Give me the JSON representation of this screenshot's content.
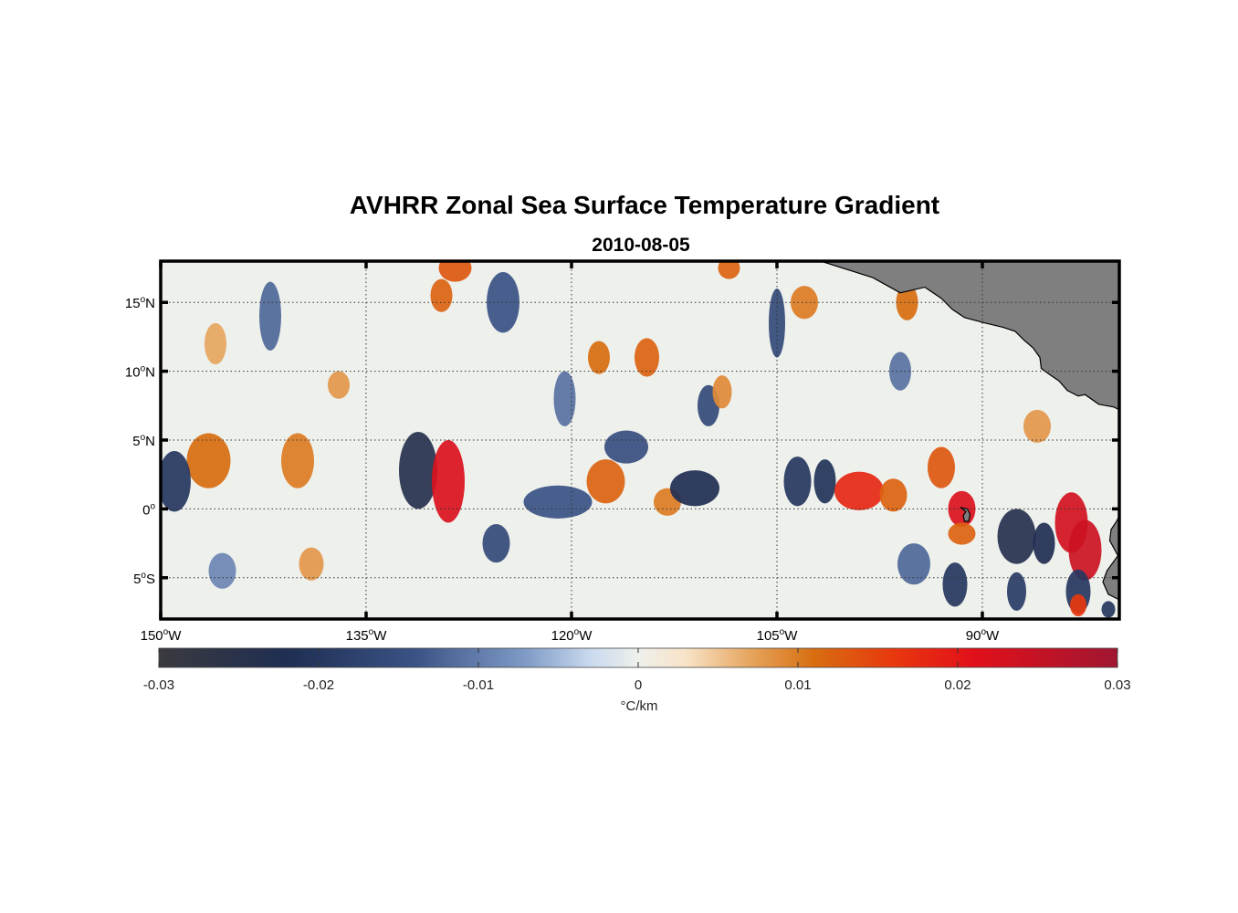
{
  "chart_data": {
    "type": "heatmap",
    "title": "AVHRR Zonal Sea Surface Temperature Gradient",
    "subtitle": "2010-08-05",
    "x_axis": {
      "range": [
        -150,
        -80
      ],
      "ticks": [
        {
          "value": -150,
          "deg": "150",
          "sup": "o",
          "hemi": "W"
        },
        {
          "value": -135,
          "deg": "135",
          "sup": "o",
          "hemi": "W"
        },
        {
          "value": -120,
          "deg": "120",
          "sup": "o",
          "hemi": "W"
        },
        {
          "value": -105,
          "deg": "105",
          "sup": "o",
          "hemi": "W"
        },
        {
          "value": -90,
          "deg": "90",
          "sup": "o",
          "hemi": "W"
        }
      ]
    },
    "y_axis": {
      "range": [
        -8,
        18
      ],
      "ticks": [
        {
          "value": 15,
          "deg": "15",
          "sup": "o",
          "hemi": "N"
        },
        {
          "value": 10,
          "deg": "10",
          "sup": "o",
          "hemi": "N"
        },
        {
          "value": 5,
          "deg": "5",
          "sup": "o",
          "hemi": "N"
        },
        {
          "value": 0,
          "deg": "0",
          "sup": "o",
          "hemi": ""
        },
        {
          "value": -5,
          "deg": "5",
          "sup": "o",
          "hemi": "S"
        }
      ]
    },
    "grid": true,
    "colorbar": {
      "range": [
        -0.03,
        0.03
      ],
      "ticks": [
        "-0.03",
        "-0.02",
        "-0.01",
        "0",
        "0.01",
        "0.02",
        "0.03"
      ],
      "tick_values": [
        -0.03,
        -0.02,
        -0.01,
        0,
        0.01,
        0.02,
        0.03
      ],
      "label": "°C/km",
      "orientation": "horizontal",
      "stops": [
        {
          "v": -0.03,
          "c": "#3a3a3f"
        },
        {
          "v": -0.022,
          "c": "#1f2e52"
        },
        {
          "v": -0.014,
          "c": "#3a5385"
        },
        {
          "v": -0.007,
          "c": "#7f9bc6"
        },
        {
          "v": -0.003,
          "c": "#c9d9ee"
        },
        {
          "v": 0.0,
          "c": "#eef0ec"
        },
        {
          "v": 0.003,
          "c": "#f8e3c7"
        },
        {
          "v": 0.007,
          "c": "#e6a55e"
        },
        {
          "v": 0.011,
          "c": "#d86e10"
        },
        {
          "v": 0.016,
          "c": "#e8380e"
        },
        {
          "v": 0.021,
          "c": "#e2101a"
        },
        {
          "v": 0.03,
          "c": "#a01632"
        }
      ]
    },
    "features": [
      {
        "lon": -146.5,
        "lat": 3.5,
        "value": 0.011,
        "slon": 1.6,
        "slat": 2.0
      },
      {
        "lon": -149.0,
        "lat": 2.0,
        "value": -0.02,
        "slon": 1.2,
        "slat": 2.2
      },
      {
        "lon": -145.5,
        "lat": -4.5,
        "value": -0.009,
        "slon": 1.0,
        "slat": 1.3
      },
      {
        "lon": -142.0,
        "lat": 14.0,
        "value": -0.012,
        "slon": 0.8,
        "slat": 2.5
      },
      {
        "lon": -140.0,
        "lat": 3.5,
        "value": 0.01,
        "slon": 1.2,
        "slat": 2.0
      },
      {
        "lon": -139.0,
        "lat": -4.0,
        "value": 0.008,
        "slon": 0.9,
        "slat": 1.2
      },
      {
        "lon": -146.0,
        "lat": 12.0,
        "value": 0.007,
        "slon": 0.8,
        "slat": 1.5
      },
      {
        "lon": -131.2,
        "lat": 2.8,
        "value": -0.024,
        "slon": 1.4,
        "slat": 2.8
      },
      {
        "lon": -129.0,
        "lat": 2.0,
        "value": 0.022,
        "slon": 1.2,
        "slat": 3.0
      },
      {
        "lon": -128.5,
        "lat": 17.5,
        "value": 0.013,
        "slon": 1.2,
        "slat": 1.0
      },
      {
        "lon": -129.5,
        "lat": 15.5,
        "value": 0.012,
        "slon": 0.8,
        "slat": 1.2
      },
      {
        "lon": -125.5,
        "lat": -2.5,
        "value": -0.016,
        "slon": 1.0,
        "slat": 1.4
      },
      {
        "lon": -125.0,
        "lat": 15.0,
        "value": -0.014,
        "slon": 1.2,
        "slat": 2.2
      },
      {
        "lon": -120.5,
        "lat": 8.0,
        "value": -0.011,
        "slon": 0.8,
        "slat": 2.0
      },
      {
        "lon": -118.0,
        "lat": 11.0,
        "value": 0.011,
        "slon": 0.8,
        "slat": 1.2
      },
      {
        "lon": -117.5,
        "lat": 2.0,
        "value": 0.012,
        "slon": 1.4,
        "slat": 1.6
      },
      {
        "lon": -121.0,
        "lat": 0.5,
        "value": -0.014,
        "slon": 2.5,
        "slat": 1.2
      },
      {
        "lon": -116.0,
        "lat": 4.5,
        "value": -0.015,
        "slon": 1.6,
        "slat": 1.2
      },
      {
        "lon": -114.5,
        "lat": 11.0,
        "value": 0.012,
        "slon": 0.9,
        "slat": 1.4
      },
      {
        "lon": -113.0,
        "lat": 0.5,
        "value": 0.01,
        "slon": 1.0,
        "slat": 1.0
      },
      {
        "lon": -111.0,
        "lat": 1.5,
        "value": -0.022,
        "slon": 1.8,
        "slat": 1.3
      },
      {
        "lon": -110.0,
        "lat": 7.5,
        "value": -0.016,
        "slon": 0.8,
        "slat": 1.5
      },
      {
        "lon": -109.0,
        "lat": 8.5,
        "value": 0.009,
        "slon": 0.7,
        "slat": 1.2
      },
      {
        "lon": -108.5,
        "lat": 17.5,
        "value": 0.012,
        "slon": 0.8,
        "slat": 0.8
      },
      {
        "lon": -105.0,
        "lat": 13.5,
        "value": -0.016,
        "slon": 0.6,
        "slat": 2.5
      },
      {
        "lon": -103.0,
        "lat": 15.0,
        "value": 0.01,
        "slon": 1.0,
        "slat": 1.2
      },
      {
        "lon": -103.5,
        "lat": 2.0,
        "value": -0.02,
        "slon": 1.0,
        "slat": 1.8
      },
      {
        "lon": -101.5,
        "lat": 2.0,
        "value": -0.021,
        "slon": 0.8,
        "slat": 1.6
      },
      {
        "lon": -99.0,
        "lat": 1.3,
        "value": 0.018,
        "slon": 1.8,
        "slat": 1.4
      },
      {
        "lon": -96.5,
        "lat": 1.0,
        "value": 0.012,
        "slon": 1.0,
        "slat": 1.2
      },
      {
        "lon": -95.5,
        "lat": 15.0,
        "value": 0.011,
        "slon": 0.8,
        "slat": 1.3
      },
      {
        "lon": -93.0,
        "lat": 3.0,
        "value": 0.013,
        "slon": 1.0,
        "slat": 1.5
      },
      {
        "lon": -91.5,
        "lat": 0.0,
        "value": 0.022,
        "slon": 1.0,
        "slat": 1.3
      },
      {
        "lon": -91.5,
        "lat": -1.8,
        "value": 0.012,
        "slon": 1.0,
        "slat": 0.8
      },
      {
        "lon": -95.0,
        "lat": -4.0,
        "value": -0.012,
        "slon": 1.2,
        "slat": 1.5
      },
      {
        "lon": -92.0,
        "lat": -5.5,
        "value": -0.02,
        "slon": 0.9,
        "slat": 1.6
      },
      {
        "lon": -87.5,
        "lat": -2.0,
        "value": -0.024,
        "slon": 1.4,
        "slat": 2.0
      },
      {
        "lon": -85.5,
        "lat": -2.5,
        "value": -0.022,
        "slon": 0.8,
        "slat": 1.5
      },
      {
        "lon": -87.5,
        "lat": -6.0,
        "value": -0.019,
        "slon": 0.7,
        "slat": 1.4
      },
      {
        "lon": -83.5,
        "lat": -1.0,
        "value": 0.023,
        "slon": 1.2,
        "slat": 2.2
      },
      {
        "lon": -82.5,
        "lat": -3.0,
        "value": 0.024,
        "slon": 1.2,
        "slat": 2.2
      },
      {
        "lon": -83.0,
        "lat": -6.0,
        "value": -0.02,
        "slon": 0.9,
        "slat": 1.6
      },
      {
        "lon": -83.0,
        "lat": -7.0,
        "value": 0.016,
        "slon": 0.6,
        "slat": 0.8
      },
      {
        "lon": -80.8,
        "lat": -7.3,
        "value": -0.02,
        "slon": 0.5,
        "slat": 0.6
      },
      {
        "lon": -96.0,
        "lat": 10.0,
        "value": -0.011,
        "slon": 0.8,
        "slat": 1.4
      },
      {
        "lon": -86.0,
        "lat": 6.0,
        "value": 0.008,
        "slon": 1.0,
        "slat": 1.2
      },
      {
        "lon": -137.0,
        "lat": 9.0,
        "value": 0.008,
        "slon": 0.8,
        "slat": 1.0
      }
    ],
    "land": [
      {
        "name": "central-america",
        "color": "#7f7f7f",
        "lonlat": [
          [
            -101.8,
            18
          ],
          [
            -98,
            16.8
          ],
          [
            -96,
            15.7
          ],
          [
            -94.2,
            16.1
          ],
          [
            -93,
            15.3
          ],
          [
            -92.2,
            14.5
          ],
          [
            -91.3,
            13.9
          ],
          [
            -89.8,
            13.5
          ],
          [
            -88.5,
            13.2
          ],
          [
            -87.6,
            12.9
          ],
          [
            -87.0,
            12.3
          ],
          [
            -86.3,
            11.7
          ],
          [
            -85.8,
            11.0
          ],
          [
            -85.7,
            10.2
          ],
          [
            -85.0,
            9.7
          ],
          [
            -84.4,
            9.3
          ],
          [
            -83.8,
            8.6
          ],
          [
            -83.0,
            8.2
          ],
          [
            -82.5,
            8.3
          ],
          [
            -81.5,
            7.6
          ],
          [
            -80.4,
            7.4
          ],
          [
            -80.0,
            7.2
          ],
          [
            -80,
            18
          ]
        ]
      },
      {
        "name": "south-america",
        "color": "#7f7f7f",
        "lonlat": [
          [
            -80,
            -0.5
          ],
          [
            -80.2,
            -0.9
          ],
          [
            -80.6,
            -1.5
          ],
          [
            -80.7,
            -2.3
          ],
          [
            -80.1,
            -3.4
          ],
          [
            -80.9,
            -4.5
          ],
          [
            -81.2,
            -5.3
          ],
          [
            -80.8,
            -6.2
          ],
          [
            -80.0,
            -6.6
          ],
          [
            -80,
            -8
          ]
        ]
      },
      {
        "name": "galapagos-isabela",
        "color": "#7f7f7f",
        "lonlat": [
          [
            -91.6,
            0.1
          ],
          [
            -91.1,
            0.0
          ],
          [
            -90.9,
            -0.4
          ],
          [
            -91.0,
            -0.9
          ],
          [
            -91.3,
            -0.9
          ],
          [
            -91.4,
            -0.5
          ],
          [
            -91.2,
            -0.2
          ]
        ]
      }
    ]
  }
}
